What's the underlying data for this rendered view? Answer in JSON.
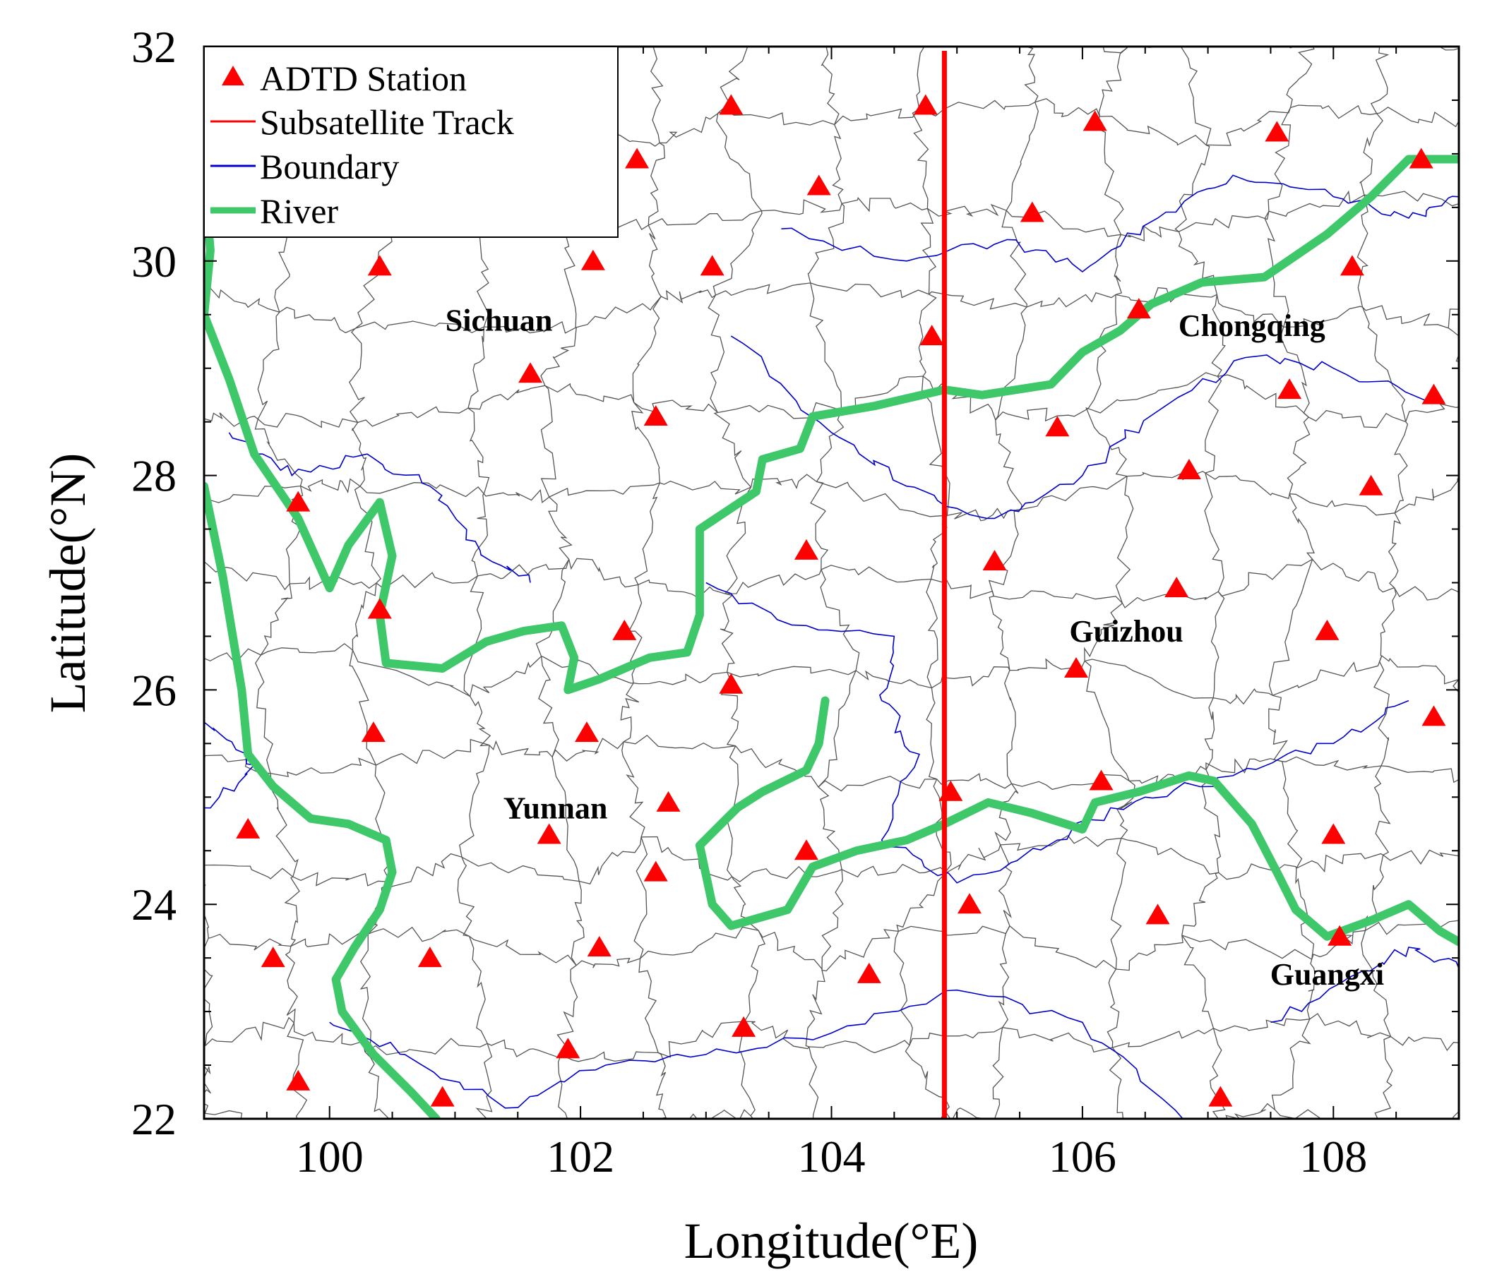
{
  "map": {
    "x_axis": {
      "title": "Longitude(°E)",
      "range": [
        99,
        109
      ],
      "ticks": [
        100,
        102,
        104,
        106,
        108
      ],
      "tick_labels": [
        "100",
        "102",
        "104",
        "106",
        "108"
      ]
    },
    "y_axis": {
      "title": "Latitude(°N)",
      "range": [
        22,
        32
      ],
      "ticks": [
        22,
        24,
        26,
        28,
        30,
        32
      ],
      "tick_labels": [
        "22",
        "24",
        "26",
        "28",
        "30",
        "32"
      ]
    },
    "legend": {
      "position": "top-left",
      "items": [
        {
          "label": "ADTD Station",
          "symbol": "triangle",
          "color": "#ff0000"
        },
        {
          "label": "Subsatellite Track",
          "symbol": "line",
          "color": "#ff0000"
        },
        {
          "label": "Boundary",
          "symbol": "line",
          "color": "#0000cc"
        },
        {
          "label": "River",
          "symbol": "thick-line",
          "color": "#3ec86a"
        }
      ]
    },
    "regions": [
      {
        "name": "Sichuan",
        "lon": 101.35,
        "lat": 29.45
      },
      {
        "name": "Chongqing",
        "lon": 107.35,
        "lat": 29.4
      },
      {
        "name": "Guizhou",
        "lon": 106.35,
        "lat": 26.55
      },
      {
        "name": "Yunnan",
        "lon": 101.8,
        "lat": 24.9
      },
      {
        "name": "Guangxi",
        "lon": 107.95,
        "lat": 23.35
      }
    ],
    "subsatellite_track_lon": 104.9,
    "colors": {
      "station": "#ff0000",
      "track": "#ff0000",
      "boundary": "#0000cc",
      "county": "#555555",
      "river": "#3ec86a"
    }
  },
  "chart_data": {
    "type": "scatter",
    "xlabel": "Longitude(°E)",
    "ylabel": "Latitude(°N)",
    "xlim": [
      99,
      109
    ],
    "ylim": [
      22,
      32
    ],
    "grid": false,
    "legend_position": "top-left",
    "stations": [
      {
        "lon": 103.2,
        "lat": 31.45
      },
      {
        "lon": 104.75,
        "lat": 31.45
      },
      {
        "lon": 106.1,
        "lat": 31.3
      },
      {
        "lon": 107.55,
        "lat": 31.2
      },
      {
        "lon": 108.7,
        "lat": 30.95
      },
      {
        "lon": 102.45,
        "lat": 30.95
      },
      {
        "lon": 103.9,
        "lat": 30.7
      },
      {
        "lon": 105.6,
        "lat": 30.45
      },
      {
        "lon": 100.4,
        "lat": 29.95
      },
      {
        "lon": 102.1,
        "lat": 30.0
      },
      {
        "lon": 103.05,
        "lat": 29.95
      },
      {
        "lon": 108.15,
        "lat": 29.95
      },
      {
        "lon": 106.45,
        "lat": 29.55
      },
      {
        "lon": 104.8,
        "lat": 29.3
      },
      {
        "lon": 101.6,
        "lat": 28.95
      },
      {
        "lon": 107.65,
        "lat": 28.8
      },
      {
        "lon": 108.8,
        "lat": 28.75
      },
      {
        "lon": 102.6,
        "lat": 28.55
      },
      {
        "lon": 105.8,
        "lat": 28.45
      },
      {
        "lon": 106.85,
        "lat": 28.05
      },
      {
        "lon": 108.3,
        "lat": 27.9
      },
      {
        "lon": 99.75,
        "lat": 27.75
      },
      {
        "lon": 103.8,
        "lat": 27.3
      },
      {
        "lon": 105.3,
        "lat": 27.2
      },
      {
        "lon": 106.75,
        "lat": 26.95
      },
      {
        "lon": 100.4,
        "lat": 26.75
      },
      {
        "lon": 102.35,
        "lat": 26.55
      },
      {
        "lon": 107.95,
        "lat": 26.55
      },
      {
        "lon": 105.95,
        "lat": 26.2
      },
      {
        "lon": 103.2,
        "lat": 26.05
      },
      {
        "lon": 108.8,
        "lat": 25.75
      },
      {
        "lon": 100.35,
        "lat": 25.6
      },
      {
        "lon": 102.05,
        "lat": 25.6
      },
      {
        "lon": 106.15,
        "lat": 25.15
      },
      {
        "lon": 104.95,
        "lat": 25.05
      },
      {
        "lon": 102.7,
        "lat": 24.95
      },
      {
        "lon": 99.35,
        "lat": 24.7
      },
      {
        "lon": 101.75,
        "lat": 24.65
      },
      {
        "lon": 108.0,
        "lat": 24.65
      },
      {
        "lon": 103.8,
        "lat": 24.5
      },
      {
        "lon": 102.6,
        "lat": 24.3
      },
      {
        "lon": 105.1,
        "lat": 24.0
      },
      {
        "lon": 106.6,
        "lat": 23.9
      },
      {
        "lon": 108.05,
        "lat": 23.7
      },
      {
        "lon": 102.15,
        "lat": 23.6
      },
      {
        "lon": 99.55,
        "lat": 23.5
      },
      {
        "lon": 100.8,
        "lat": 23.5
      },
      {
        "lon": 104.3,
        "lat": 23.35
      },
      {
        "lon": 103.3,
        "lat": 22.85
      },
      {
        "lon": 101.9,
        "lat": 22.65
      },
      {
        "lon": 99.75,
        "lat": 22.35
      },
      {
        "lon": 100.9,
        "lat": 22.2
      },
      {
        "lon": 107.1,
        "lat": 22.2
      }
    ],
    "rivers": [
      [
        [
          99.0,
          30.8
        ],
        [
          99.05,
          30.1
        ],
        [
          99.0,
          29.5
        ],
        [
          99.2,
          28.9
        ],
        [
          99.4,
          28.2
        ],
        [
          99.75,
          27.6
        ],
        [
          100.0,
          26.95
        ],
        [
          100.15,
          27.35
        ],
        [
          100.4,
          27.75
        ],
        [
          100.5,
          27.25
        ],
        [
          100.4,
          26.7
        ],
        [
          100.45,
          26.25
        ],
        [
          100.9,
          26.2
        ],
        [
          101.25,
          26.45
        ],
        [
          101.55,
          26.55
        ],
        [
          101.85,
          26.6
        ],
        [
          101.95,
          26.3
        ],
        [
          101.9,
          26.0
        ],
        [
          102.15,
          26.1
        ],
        [
          102.55,
          26.3
        ],
        [
          102.85,
          26.35
        ],
        [
          102.95,
          26.7
        ],
        [
          102.95,
          27.5
        ],
        [
          103.4,
          27.85
        ],
        [
          103.45,
          28.15
        ],
        [
          103.75,
          28.25
        ],
        [
          103.85,
          28.55
        ],
        [
          104.35,
          28.65
        ],
        [
          104.9,
          28.8
        ],
        [
          105.2,
          28.75
        ],
        [
          105.75,
          28.85
        ],
        [
          106.0,
          29.15
        ],
        [
          106.3,
          29.35
        ],
        [
          106.55,
          29.6
        ],
        [
          106.95,
          29.8
        ],
        [
          107.45,
          29.85
        ],
        [
          107.95,
          30.25
        ],
        [
          108.3,
          30.6
        ],
        [
          108.6,
          30.95
        ],
        [
          109.0,
          30.95
        ]
      ],
      [
        [
          99.0,
          27.9
        ],
        [
          99.15,
          27.05
        ],
        [
          99.3,
          26.0
        ],
        [
          99.35,
          25.4
        ],
        [
          99.55,
          25.1
        ],
        [
          99.85,
          24.8
        ],
        [
          100.15,
          24.75
        ],
        [
          100.45,
          24.6
        ],
        [
          100.5,
          24.3
        ],
        [
          100.4,
          23.95
        ],
        [
          100.2,
          23.6
        ],
        [
          100.05,
          23.3
        ],
        [
          100.1,
          23.0
        ],
        [
          100.35,
          22.6
        ],
        [
          100.65,
          22.25
        ],
        [
          100.85,
          22.0
        ]
      ],
      [
        [
          103.95,
          25.9
        ],
        [
          103.9,
          25.5
        ],
        [
          103.8,
          25.25
        ],
        [
          103.45,
          25.05
        ],
        [
          103.25,
          24.9
        ],
        [
          102.95,
          24.55
        ],
        [
          103.05,
          24.0
        ],
        [
          103.2,
          23.8
        ],
        [
          103.65,
          23.95
        ],
        [
          103.85,
          24.35
        ],
        [
          104.2,
          24.5
        ],
        [
          104.6,
          24.6
        ],
        [
          104.9,
          24.75
        ],
        [
          105.25,
          24.95
        ],
        [
          105.6,
          24.85
        ],
        [
          106.0,
          24.7
        ],
        [
          106.1,
          24.95
        ],
        [
          106.45,
          25.05
        ],
        [
          106.85,
          25.2
        ],
        [
          107.05,
          25.15
        ],
        [
          107.35,
          24.75
        ],
        [
          107.55,
          24.3
        ],
        [
          107.7,
          23.95
        ],
        [
          107.95,
          23.7
        ],
        [
          108.3,
          23.85
        ],
        [
          108.6,
          24.0
        ],
        [
          108.85,
          23.75
        ],
        [
          109.0,
          23.65
        ]
      ]
    ],
    "subsatellite_track": [
      [
        104.9,
        22.0
      ],
      [
        104.9,
        32.0
      ]
    ]
  }
}
